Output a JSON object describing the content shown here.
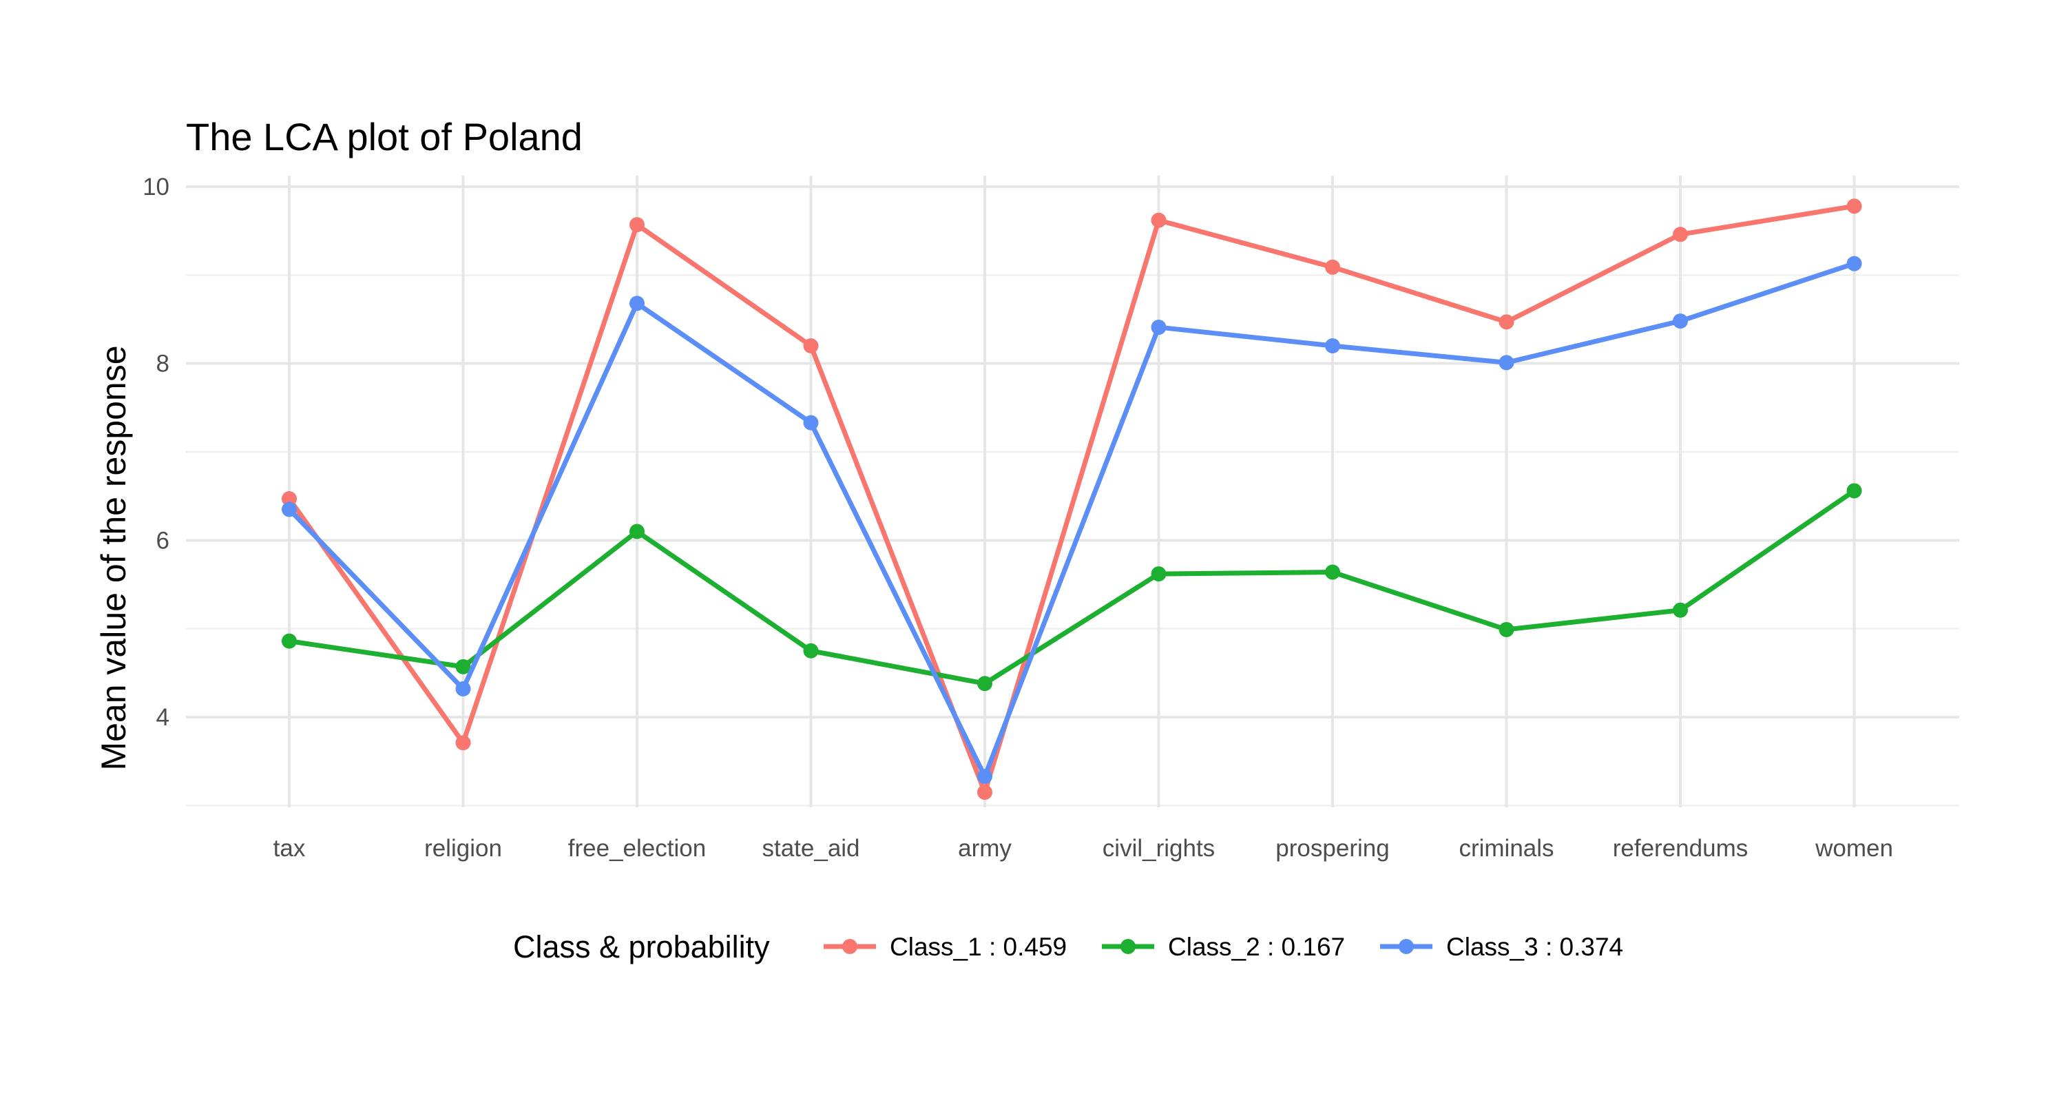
{
  "chart_data": {
    "type": "line",
    "title": "The LCA plot of Poland",
    "xlabel": "",
    "ylabel": "Mean value of the response",
    "categories": [
      "tax",
      "religion",
      "free_election",
      "state_aid",
      "army",
      "civil_rights",
      "prospering",
      "criminals",
      "referendums",
      "women"
    ],
    "yticks": [
      4,
      6,
      8,
      10
    ],
    "ylim": [
      2.98,
      10.0
    ],
    "grid": true,
    "legend": {
      "title": "Class & probability",
      "position": "bottom"
    },
    "series": [
      {
        "name": "Class_1 : 0.459",
        "color": "#F8766D",
        "values": [
          6.47,
          3.71,
          9.57,
          8.2,
          3.15,
          9.62,
          9.09,
          8.47,
          9.46,
          9.78
        ]
      },
      {
        "name": "Class_2 : 0.167",
        "color": "#1DAF2F",
        "values": [
          4.86,
          4.57,
          6.1,
          4.75,
          4.38,
          5.62,
          5.64,
          4.99,
          5.21,
          6.56
        ]
      },
      {
        "name": "Class_3 : 0.374",
        "color": "#5B8EF6",
        "values": [
          6.35,
          4.32,
          8.68,
          7.33,
          3.33,
          8.41,
          8.2,
          8.01,
          8.48,
          9.13
        ]
      }
    ]
  }
}
